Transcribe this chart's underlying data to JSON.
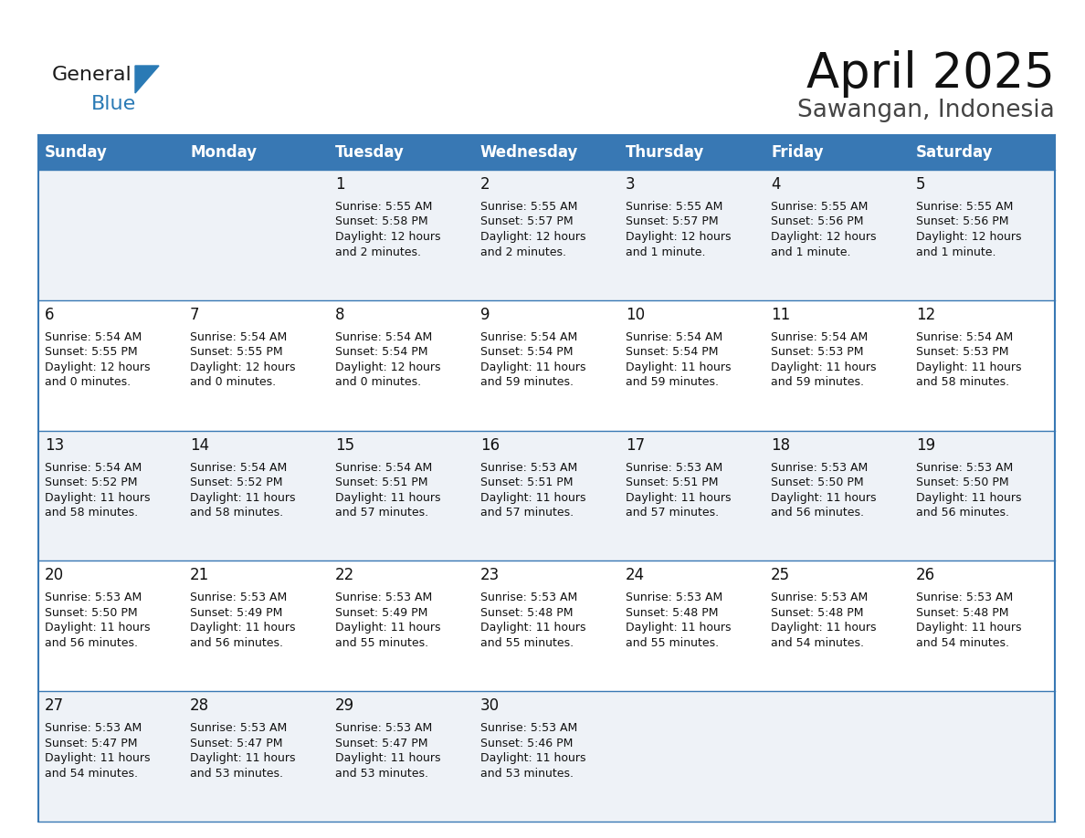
{
  "title": "April 2025",
  "subtitle": "Sawangan, Indonesia",
  "header_color": "#3878b4",
  "header_text_color": "#ffffff",
  "bg_color": "#ffffff",
  "alt_row_color": "#eef2f7",
  "border_color": "#3878b4",
  "days_of_week": [
    "Sunday",
    "Monday",
    "Tuesday",
    "Wednesday",
    "Thursday",
    "Friday",
    "Saturday"
  ],
  "title_fontsize": 38,
  "subtitle_fontsize": 19,
  "header_fontsize": 12,
  "cell_fontsize": 9,
  "day_num_fontsize": 12,
  "logo_color1": "#1a1a1a",
  "logo_color2": "#2a7ab5",
  "logo_triangle_color": "#2a7ab5",
  "weeks": [
    {
      "days": [
        {
          "day": null,
          "sunrise": null,
          "sunset": null,
          "daylight_line1": null,
          "daylight_line2": null
        },
        {
          "day": null,
          "sunrise": null,
          "sunset": null,
          "daylight_line1": null,
          "daylight_line2": null
        },
        {
          "day": 1,
          "sunrise": "5:55 AM",
          "sunset": "5:58 PM",
          "daylight_line1": "12 hours",
          "daylight_line2": "and 2 minutes."
        },
        {
          "day": 2,
          "sunrise": "5:55 AM",
          "sunset": "5:57 PM",
          "daylight_line1": "12 hours",
          "daylight_line2": "and 2 minutes."
        },
        {
          "day": 3,
          "sunrise": "5:55 AM",
          "sunset": "5:57 PM",
          "daylight_line1": "12 hours",
          "daylight_line2": "and 1 minute."
        },
        {
          "day": 4,
          "sunrise": "5:55 AM",
          "sunset": "5:56 PM",
          "daylight_line1": "12 hours",
          "daylight_line2": "and 1 minute."
        },
        {
          "day": 5,
          "sunrise": "5:55 AM",
          "sunset": "5:56 PM",
          "daylight_line1": "12 hours",
          "daylight_line2": "and 1 minute."
        }
      ]
    },
    {
      "days": [
        {
          "day": 6,
          "sunrise": "5:54 AM",
          "sunset": "5:55 PM",
          "daylight_line1": "12 hours",
          "daylight_line2": "and 0 minutes."
        },
        {
          "day": 7,
          "sunrise": "5:54 AM",
          "sunset": "5:55 PM",
          "daylight_line1": "12 hours",
          "daylight_line2": "and 0 minutes."
        },
        {
          "day": 8,
          "sunrise": "5:54 AM",
          "sunset": "5:54 PM",
          "daylight_line1": "12 hours",
          "daylight_line2": "and 0 minutes."
        },
        {
          "day": 9,
          "sunrise": "5:54 AM",
          "sunset": "5:54 PM",
          "daylight_line1": "11 hours",
          "daylight_line2": "and 59 minutes."
        },
        {
          "day": 10,
          "sunrise": "5:54 AM",
          "sunset": "5:54 PM",
          "daylight_line1": "11 hours",
          "daylight_line2": "and 59 minutes."
        },
        {
          "day": 11,
          "sunrise": "5:54 AM",
          "sunset": "5:53 PM",
          "daylight_line1": "11 hours",
          "daylight_line2": "and 59 minutes."
        },
        {
          "day": 12,
          "sunrise": "5:54 AM",
          "sunset": "5:53 PM",
          "daylight_line1": "11 hours",
          "daylight_line2": "and 58 minutes."
        }
      ]
    },
    {
      "days": [
        {
          "day": 13,
          "sunrise": "5:54 AM",
          "sunset": "5:52 PM",
          "daylight_line1": "11 hours",
          "daylight_line2": "and 58 minutes."
        },
        {
          "day": 14,
          "sunrise": "5:54 AM",
          "sunset": "5:52 PM",
          "daylight_line1": "11 hours",
          "daylight_line2": "and 58 minutes."
        },
        {
          "day": 15,
          "sunrise": "5:54 AM",
          "sunset": "5:51 PM",
          "daylight_line1": "11 hours",
          "daylight_line2": "and 57 minutes."
        },
        {
          "day": 16,
          "sunrise": "5:53 AM",
          "sunset": "5:51 PM",
          "daylight_line1": "11 hours",
          "daylight_line2": "and 57 minutes."
        },
        {
          "day": 17,
          "sunrise": "5:53 AM",
          "sunset": "5:51 PM",
          "daylight_line1": "11 hours",
          "daylight_line2": "and 57 minutes."
        },
        {
          "day": 18,
          "sunrise": "5:53 AM",
          "sunset": "5:50 PM",
          "daylight_line1": "11 hours",
          "daylight_line2": "and 56 minutes."
        },
        {
          "day": 19,
          "sunrise": "5:53 AM",
          "sunset": "5:50 PM",
          "daylight_line1": "11 hours",
          "daylight_line2": "and 56 minutes."
        }
      ]
    },
    {
      "days": [
        {
          "day": 20,
          "sunrise": "5:53 AM",
          "sunset": "5:50 PM",
          "daylight_line1": "11 hours",
          "daylight_line2": "and 56 minutes."
        },
        {
          "day": 21,
          "sunrise": "5:53 AM",
          "sunset": "5:49 PM",
          "daylight_line1": "11 hours",
          "daylight_line2": "and 56 minutes."
        },
        {
          "day": 22,
          "sunrise": "5:53 AM",
          "sunset": "5:49 PM",
          "daylight_line1": "11 hours",
          "daylight_line2": "and 55 minutes."
        },
        {
          "day": 23,
          "sunrise": "5:53 AM",
          "sunset": "5:48 PM",
          "daylight_line1": "11 hours",
          "daylight_line2": "and 55 minutes."
        },
        {
          "day": 24,
          "sunrise": "5:53 AM",
          "sunset": "5:48 PM",
          "daylight_line1": "11 hours",
          "daylight_line2": "and 55 minutes."
        },
        {
          "day": 25,
          "sunrise": "5:53 AM",
          "sunset": "5:48 PM",
          "daylight_line1": "11 hours",
          "daylight_line2": "and 54 minutes."
        },
        {
          "day": 26,
          "sunrise": "5:53 AM",
          "sunset": "5:48 PM",
          "daylight_line1": "11 hours",
          "daylight_line2": "and 54 minutes."
        }
      ]
    },
    {
      "days": [
        {
          "day": 27,
          "sunrise": "5:53 AM",
          "sunset": "5:47 PM",
          "daylight_line1": "11 hours",
          "daylight_line2": "and 54 minutes."
        },
        {
          "day": 28,
          "sunrise": "5:53 AM",
          "sunset": "5:47 PM",
          "daylight_line1": "11 hours",
          "daylight_line2": "and 53 minutes."
        },
        {
          "day": 29,
          "sunrise": "5:53 AM",
          "sunset": "5:47 PM",
          "daylight_line1": "11 hours",
          "daylight_line2": "and 53 minutes."
        },
        {
          "day": 30,
          "sunrise": "5:53 AM",
          "sunset": "5:46 PM",
          "daylight_line1": "11 hours",
          "daylight_line2": "and 53 minutes."
        },
        {
          "day": null,
          "sunrise": null,
          "sunset": null,
          "daylight_line1": null,
          "daylight_line2": null
        },
        {
          "day": null,
          "sunrise": null,
          "sunset": null,
          "daylight_line1": null,
          "daylight_line2": null
        },
        {
          "day": null,
          "sunrise": null,
          "sunset": null,
          "daylight_line1": null,
          "daylight_line2": null
        }
      ]
    }
  ]
}
